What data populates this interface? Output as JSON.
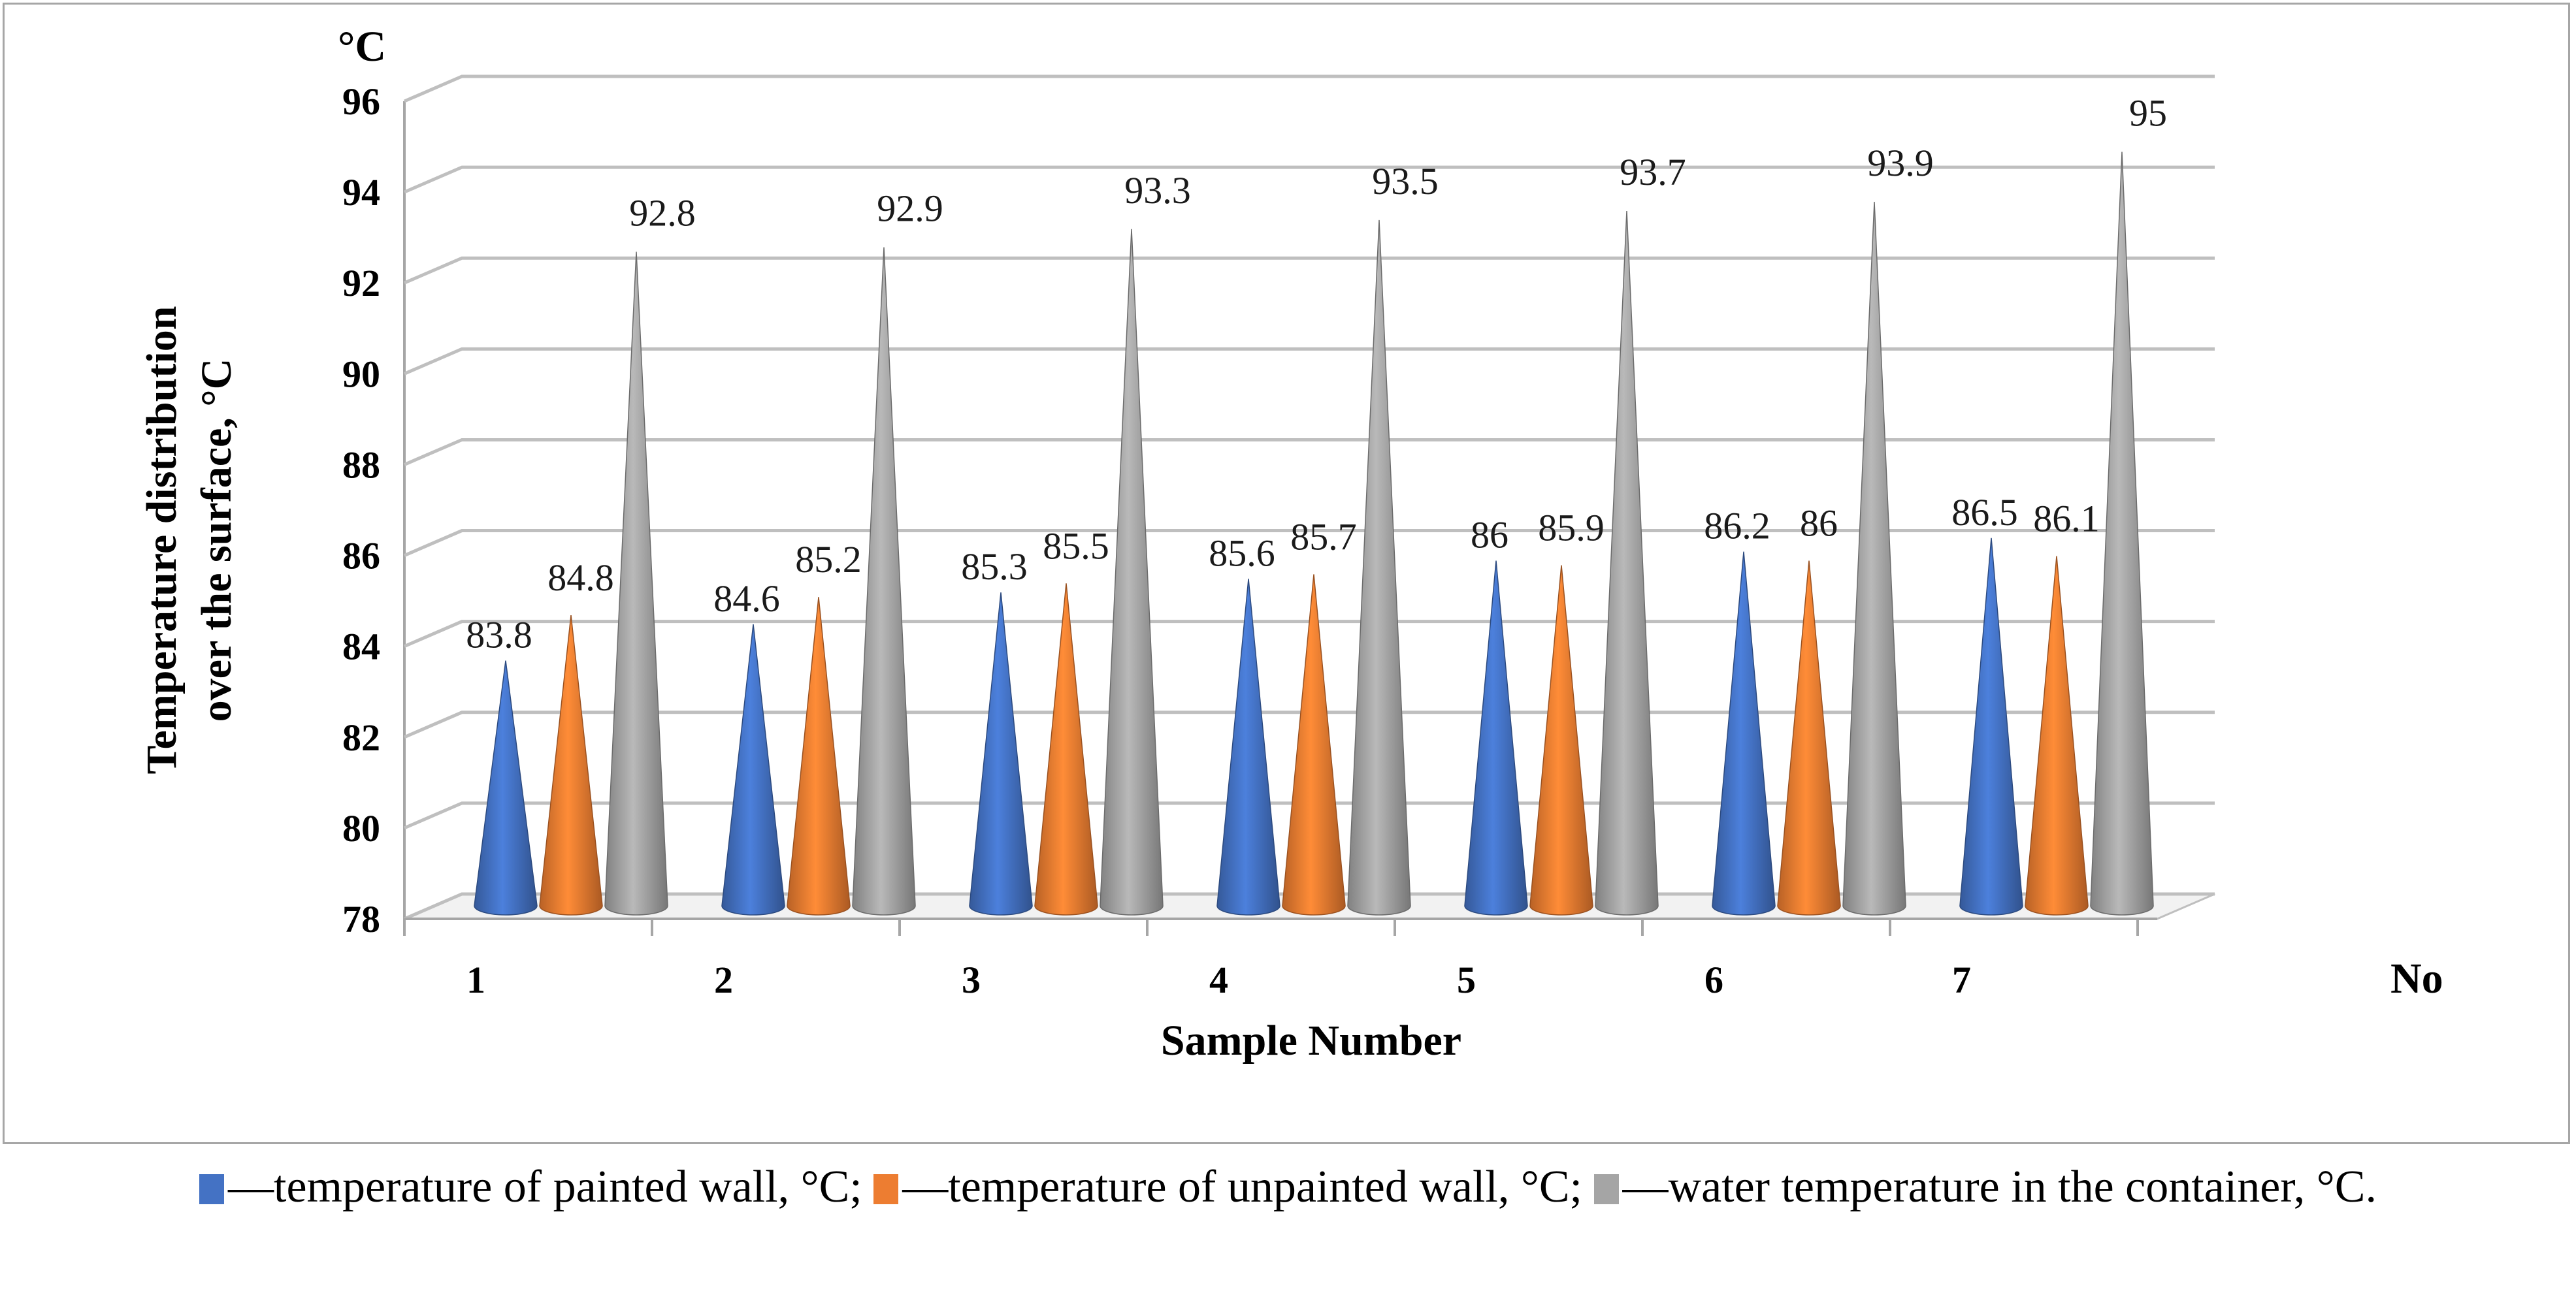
{
  "chart_data": {
    "type": "bar",
    "style": "3d-cone",
    "categories": [
      "1",
      "2",
      "3",
      "4",
      "5",
      "6",
      "7"
    ],
    "series": [
      {
        "name": "temperature of painted wall, °C;",
        "color": "#4472c4",
        "values": [
          83.8,
          84.6,
          85.3,
          85.6,
          86,
          86.2,
          86.5
        ]
      },
      {
        "name": "temperature of unpainted wall, °C;",
        "color": "#ed7d31",
        "values": [
          84.8,
          85.2,
          85.5,
          85.7,
          85.9,
          86,
          86.1
        ]
      },
      {
        "name": "water temperature in the container, °C.",
        "color": "#a5a5a5",
        "values": [
          92.8,
          92.9,
          93.3,
          93.5,
          93.7,
          93.9,
          95
        ]
      }
    ],
    "data_labels": [
      [
        "83.8",
        "84.6",
        "85.3",
        "85.6",
        "86",
        "86.2",
        "86.5"
      ],
      [
        "84.8",
        "85.2",
        "85.5",
        "85.7",
        "85.9",
        "86",
        "86.1"
      ],
      [
        "92.8",
        "92.9",
        "93.3",
        "93.5",
        "93.7",
        "93.9",
        "95"
      ]
    ],
    "ylim": [
      78,
      96
    ],
    "yticks": [
      "78",
      "80",
      "82",
      "84",
      "86",
      "88",
      "90",
      "92",
      "94",
      "96"
    ],
    "yunit": "°C",
    "xunit": "No",
    "xlabel": "Sample Number",
    "ylabel_line1": "Temperature distribution",
    "ylabel_line2": "over the surface, °C",
    "grid": true
  },
  "legend": {
    "sep": "—",
    "items": [
      {
        "label": "temperature of painted wall, °C;",
        "color": "#4472c4"
      },
      {
        "label": "temperature of unpainted wall, °C;",
        "color": "#ed7d31"
      },
      {
        "label": "water temperature in the container, °C.",
        "color": "#a5a5a5"
      }
    ]
  }
}
